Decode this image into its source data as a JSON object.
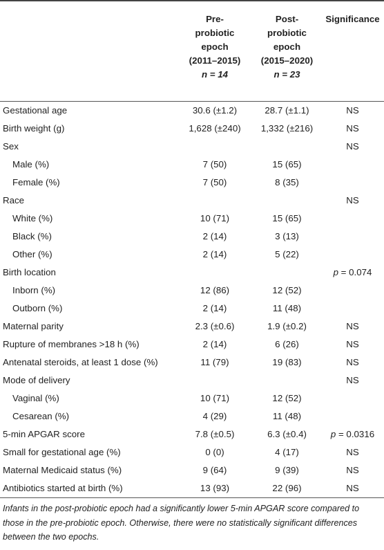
{
  "header": {
    "col1": [
      "Pre-",
      "probiotic",
      "epoch",
      "(2011–2015)",
      "n = 14"
    ],
    "col2": [
      "Post-",
      "probiotic",
      "epoch",
      "(2015–2020)",
      "n = 23"
    ],
    "col3": "Significance"
  },
  "rows": [
    {
      "label": "Gestational age",
      "indent": false,
      "pre": "30.6 (±1.2)",
      "post": "28.7 (±1.1)",
      "sig": "NS"
    },
    {
      "label": "Birth weight (g)",
      "indent": false,
      "pre": "1,628 (±240)",
      "post": "1,332 (±216)",
      "sig": "NS"
    },
    {
      "label": "Sex",
      "indent": false,
      "pre": "",
      "post": "",
      "sig": "NS"
    },
    {
      "label": "Male (%)",
      "indent": true,
      "pre": "7 (50)",
      "post": "15 (65)",
      "sig": ""
    },
    {
      "label": "Female (%)",
      "indent": true,
      "pre": "7 (50)",
      "post": "8 (35)",
      "sig": ""
    },
    {
      "label": "Race",
      "indent": false,
      "pre": "",
      "post": "",
      "sig": "NS"
    },
    {
      "label": "White (%)",
      "indent": true,
      "pre": "10 (71)",
      "post": "15 (65)",
      "sig": ""
    },
    {
      "label": "Black (%)",
      "indent": true,
      "pre": "2 (14)",
      "post": "3 (13)",
      "sig": ""
    },
    {
      "label": "Other (%)",
      "indent": true,
      "pre": "2 (14)",
      "post": "5 (22)",
      "sig": ""
    },
    {
      "label": "Birth location",
      "indent": false,
      "pre": "",
      "post": "",
      "sig": "p = 0.074"
    },
    {
      "label": "Inborn (%)",
      "indent": true,
      "pre": "12 (86)",
      "post": "12 (52)",
      "sig": ""
    },
    {
      "label": "Outborn (%)",
      "indent": true,
      "pre": "2 (14)",
      "post": "11 (48)",
      "sig": ""
    },
    {
      "label": "Maternal parity",
      "indent": false,
      "pre": "2.3 (±0.6)",
      "post": "1.9 (±0.2)",
      "sig": "NS"
    },
    {
      "label": "Rupture of membranes >18 h (%)",
      "indent": false,
      "pre": "2 (14)",
      "post": "6 (26)",
      "sig": "NS"
    },
    {
      "label": "Antenatal steroids, at least 1 dose (%)",
      "indent": false,
      "pre": "11 (79)",
      "post": "19 (83)",
      "sig": "NS"
    },
    {
      "label": "Mode of delivery",
      "indent": false,
      "pre": "",
      "post": "",
      "sig": "NS"
    },
    {
      "label": "Vaginal (%)",
      "indent": true,
      "pre": "10 (71)",
      "post": "12 (52)",
      "sig": ""
    },
    {
      "label": "Cesarean (%)",
      "indent": true,
      "pre": "4 (29)",
      "post": "11 (48)",
      "sig": ""
    },
    {
      "label": "5-min APGAR score",
      "indent": false,
      "pre": "7.8 (±0.5)",
      "post": "6.3 (±0.4)",
      "sig": "p = 0.0316"
    },
    {
      "label": "Small for gestational age (%)",
      "indent": false,
      "pre": "0 (0)",
      "post": "4 (17)",
      "sig": "NS"
    },
    {
      "label": "Maternal Medicaid status (%)",
      "indent": false,
      "pre": "9 (64)",
      "post": "9 (39)",
      "sig": "NS"
    },
    {
      "label": "Antibiotics started at birth (%)",
      "indent": false,
      "pre": "13 (93)",
      "post": "22 (96)",
      "sig": "NS"
    }
  ],
  "note": "Infants in the post-probiotic epoch had a significantly lower 5-min APGAR score compared to those in the pre-probiotic epoch. Otherwise, there were no statistically significant differences between the two epochs."
}
